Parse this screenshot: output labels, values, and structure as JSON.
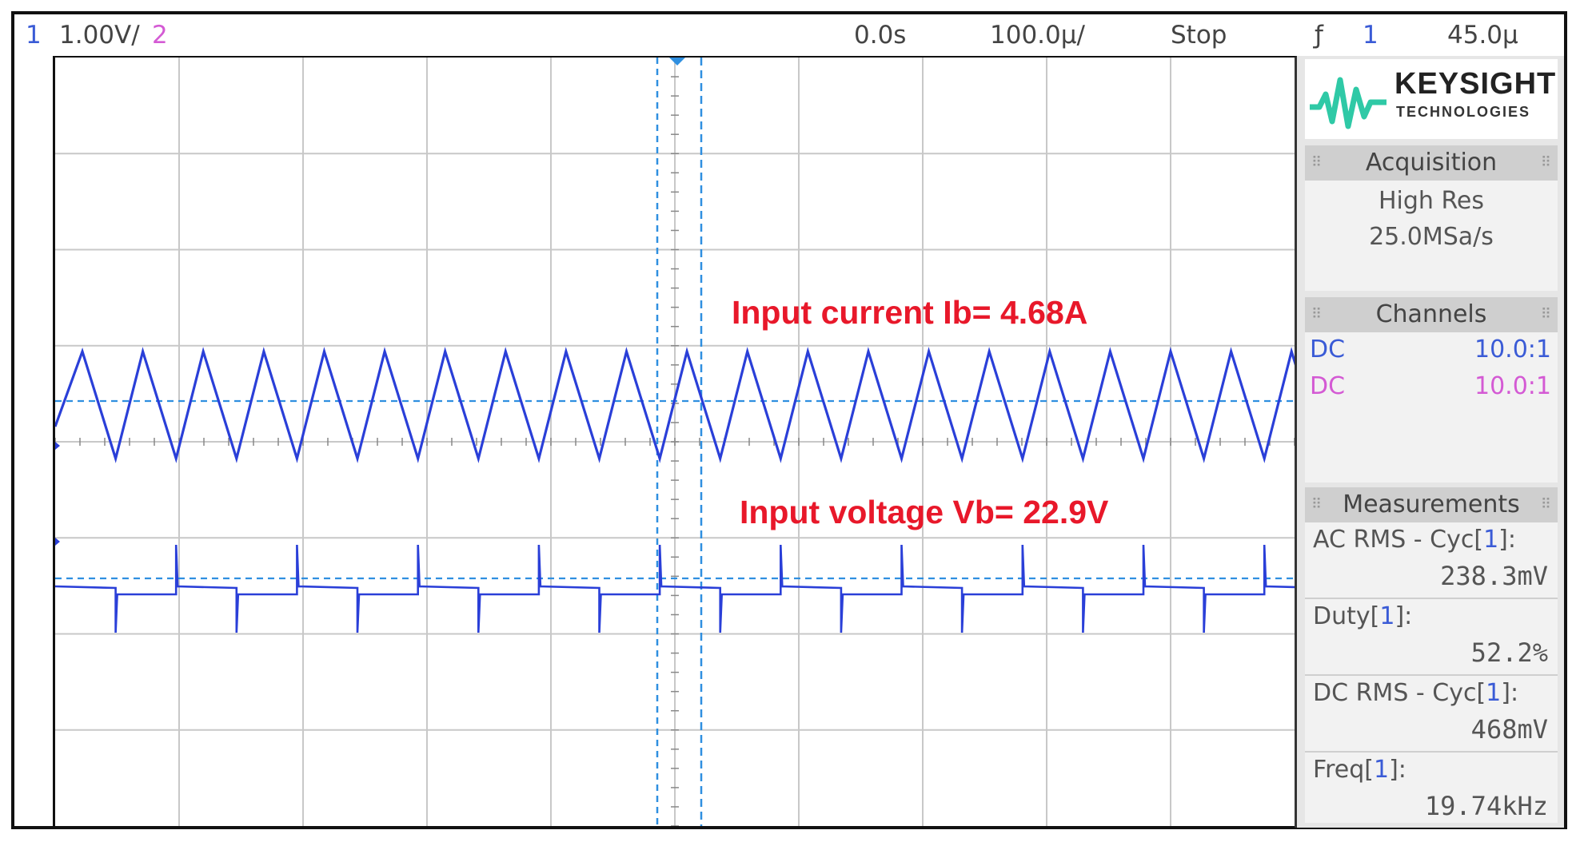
{
  "topbar": {
    "ch1_num": "1",
    "ch1_scale": "1.00V/",
    "ch2_num": "2",
    "time_offset": "0.0s",
    "time_scale": "100.0µ/",
    "run_state": "Stop",
    "trigger_icon": "trigger-edge-icon",
    "trigger_glyph": "ƒ",
    "trigger_source": "1",
    "trigger_level": "45.0µ"
  },
  "annotations": {
    "current": "Input current Ib= 4.68A",
    "voltage": "Input voltage Vb= 22.9V"
  },
  "markers": {
    "ch1_trigger": "T",
    "ch2_trigger": "T"
  },
  "sidebar": {
    "logo": {
      "brand": "KEYSIGHT",
      "sub": "TECHNOLOGIES",
      "color": "#2fc9a6"
    },
    "acquisition": {
      "title": "Acquisition",
      "mode": "High Res",
      "rate": "25.0MSa/s"
    },
    "channels": {
      "title": "Channels",
      "rows": [
        {
          "coupling": "DC",
          "probe": "10.0:1",
          "color": "#3a5bd6"
        },
        {
          "coupling": "DC",
          "probe": "10.0:1",
          "color": "#d45ad4"
        }
      ]
    },
    "measurements": {
      "title": "Measurements",
      "items": [
        {
          "label": "AC RMS - Cyc",
          "src": "1",
          "value": "238.3mV"
        },
        {
          "label": "Duty",
          "src": "1",
          "value": "52.2%"
        },
        {
          "label": "DC RMS - Cyc",
          "src": "1",
          "value": "468mV"
        },
        {
          "label": "Freq",
          "src": "1",
          "value": "19.74kHz"
        }
      ]
    }
  },
  "colors": {
    "trace": "#2a3fd8",
    "grid": "#c8c8c8",
    "cursor": "#2f8fe0",
    "annotation": "#e8182a"
  }
}
